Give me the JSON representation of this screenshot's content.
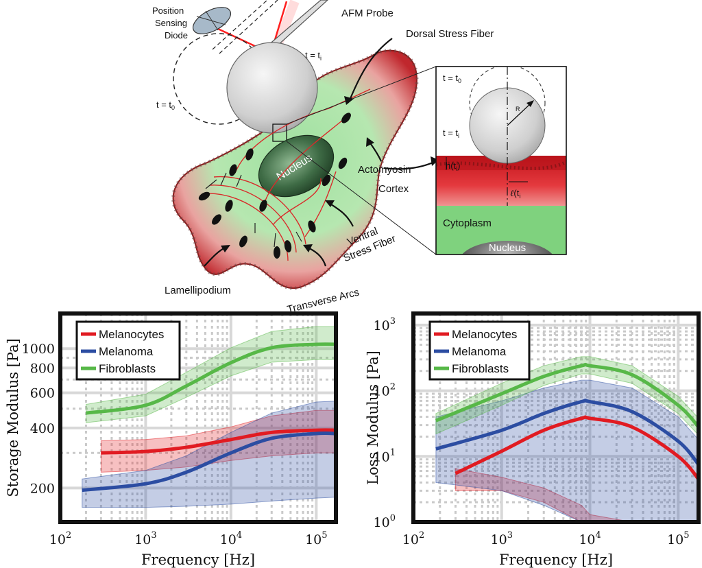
{
  "illustration": {
    "labels": {
      "position_sensing_diode": [
        "Position",
        "Sensing",
        "Diode"
      ],
      "afm_probe": "AFM Probe",
      "dorsal_stress_fiber": "Dorsal Stress Fiber",
      "t_i": "t = t",
      "t_i_sub": "i",
      "t_0": "t = t",
      "t_0_sub": "0",
      "nucleus": "Nucleus",
      "actomyosin_cortex": [
        "Actomyosin",
        "Cortex"
      ],
      "ventral_stress_fiber": [
        "Ventral",
        "Stress Fiber"
      ],
      "lamellipodium": "Lamellipodium",
      "transverse_arcs": "Transverse Arcs"
    },
    "inset": {
      "t0": "t = t",
      "t0_sub": "0",
      "ti": "t = t",
      "ti_sub": "i",
      "radius": "R",
      "h": "h(t",
      "h_sub": "i",
      "h_end": ")",
      "l": "(t",
      "l_sym": "ℓ",
      "l_sub": "i",
      "cytoplasm": "Cytoplasm",
      "nucleus": "Nucleus"
    }
  },
  "chart_data": [
    {
      "type": "line",
      "title": "",
      "xlabel": "Frequency [Hz]",
      "ylabel": "Storage Modulus [Pa]",
      "xscale": "log",
      "yscale": "log",
      "xlim": [
        100,
        170000
      ],
      "ylim": [
        135,
        1500
      ],
      "xticks": [
        100,
        1000,
        10000,
        100000
      ],
      "xtick_labels": [
        [
          "10",
          "2"
        ],
        [
          "10",
          "3"
        ],
        [
          "10",
          "4"
        ],
        [
          "10",
          "5"
        ]
      ],
      "yticks": [
        200,
        400,
        600,
        800,
        1000
      ],
      "ytick_labels": [
        "200",
        "400",
        "600",
        "800",
        "1000"
      ],
      "legend": "top-left",
      "series": [
        {
          "name": "Melanocytes",
          "color": "#e11b22",
          "x": [
            300,
            1000,
            3000,
            10000,
            30000,
            100000,
            170000
          ],
          "values": [
            300,
            305,
            320,
            350,
            380,
            390,
            390
          ],
          "lower": [
            240,
            245,
            255,
            275,
            290,
            300,
            300
          ],
          "upper": [
            345,
            350,
            365,
            405,
            460,
            490,
            490
          ]
        },
        {
          "name": "Melanoma",
          "color": "#2c4da2",
          "x": [
            180,
            1000,
            3000,
            10000,
            30000,
            100000,
            170000
          ],
          "values": [
            195,
            210,
            240,
            300,
            355,
            375,
            375
          ],
          "lower": [
            160,
            160,
            162,
            166,
            172,
            178,
            180
          ],
          "upper": [
            222,
            245,
            290,
            380,
            475,
            540,
            545
          ]
        },
        {
          "name": "Fibroblasts",
          "color": "#57b848",
          "x": [
            200,
            1000,
            3000,
            10000,
            30000,
            100000,
            170000
          ],
          "values": [
            475,
            520,
            650,
            850,
            1010,
            1050,
            1050
          ],
          "lower": [
            425,
            460,
            570,
            730,
            855,
            880,
            880
          ],
          "upper": [
            525,
            590,
            760,
            1010,
            1220,
            1290,
            1290
          ]
        }
      ]
    },
    {
      "type": "line",
      "title": "",
      "xlabel": "Frequency [Hz]",
      "ylabel": "Loss Modulus [Pa]",
      "xscale": "log",
      "yscale": "log",
      "xlim": [
        100,
        170000
      ],
      "ylim": [
        1,
        1500
      ],
      "xticks": [
        100,
        1000,
        10000,
        100000
      ],
      "xtick_labels": [
        [
          "10",
          "2"
        ],
        [
          "10",
          "3"
        ],
        [
          "10",
          "4"
        ],
        [
          "10",
          "5"
        ]
      ],
      "yticks": [
        1,
        10,
        100,
        1000
      ],
      "ytick_labels": [
        [
          "10",
          "0"
        ],
        [
          "10",
          "1"
        ],
        [
          "10",
          "2"
        ],
        [
          "10",
          "3"
        ]
      ],
      "legend": "top-left",
      "series": [
        {
          "name": "Melanocytes",
          "color": "#e11b22",
          "x": [
            300,
            1000,
            3000,
            8000,
            10000,
            30000,
            100000,
            170000
          ],
          "values": [
            5.5,
            12,
            25,
            38,
            38,
            28,
            10,
            4.5
          ],
          "lower": [
            3,
            3,
            2,
            1.0,
            1,
            1,
            1,
            1
          ],
          "upper": [
            6.5,
            4.8,
            3.3,
            1.8,
            1.3,
            1,
            1,
            1
          ]
        },
        {
          "name": "Melanoma",
          "color": "#2c4da2",
          "x": [
            180,
            1000,
            3000,
            8000,
            10000,
            30000,
            100000,
            170000
          ],
          "values": [
            13,
            25,
            45,
            68,
            68,
            48,
            17,
            7.5
          ],
          "lower": [
            4,
            3,
            1.8,
            1,
            1,
            1,
            1,
            1
          ],
          "upper": [
            40,
            70,
            110,
            145,
            145,
            110,
            40,
            18
          ]
        },
        {
          "name": "Fibroblasts",
          "color": "#57b848",
          "x": [
            180,
            1000,
            3000,
            8000,
            10000,
            30000,
            100000,
            170000
          ],
          "values": [
            35,
            90,
            165,
            240,
            240,
            175,
            60,
            28
          ],
          "lower": [
            22,
            60,
            120,
            180,
            180,
            130,
            45,
            21
          ],
          "upper": [
            45,
            130,
            240,
            330,
            330,
            240,
            82,
            38
          ]
        }
      ]
    }
  ]
}
